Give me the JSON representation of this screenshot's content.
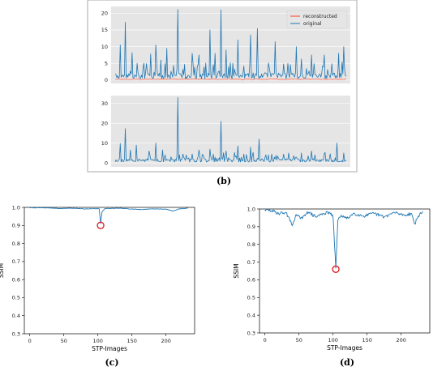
{
  "colors": {
    "original": "#1f77b4",
    "reconstructed": "#ff3b1f",
    "marker": "#e0161b",
    "panel_bg": "#e5e5e5",
    "frame": "#a9a9a9"
  },
  "captions": {
    "b": "(b)",
    "c": "(c)",
    "d": "(d)"
  },
  "chart_data": [
    {
      "id": "b_top",
      "type": "line",
      "ylim": [
        -1,
        22
      ],
      "yticks": [
        0,
        5,
        10,
        15,
        20
      ],
      "x": {
        "min": 0,
        "max": 273
      },
      "legend": {
        "placement": "top-right",
        "entries": [
          "reconstructed",
          "original"
        ]
      },
      "series": [
        {
          "name": "reconstructed",
          "color": "#ff3b1f",
          "base": 0.3,
          "points": []
        },
        {
          "name": "original",
          "color": "#1f77b4",
          "base": 1.6,
          "points": [
            [
              6,
              10.5
            ],
            [
              12,
              17.3
            ],
            [
              20,
              8.2
            ],
            [
              33,
              3.8
            ],
            [
              42,
              7.8
            ],
            [
              48,
              10.5
            ],
            [
              54,
              6.0
            ],
            [
              61,
              9.5
            ],
            [
              74,
              21.1
            ],
            [
              80,
              3.2
            ],
            [
              91,
              8.0
            ],
            [
              99,
              7.5
            ],
            [
              112,
              15.0
            ],
            [
              118,
              8.0
            ],
            [
              125,
              21.0
            ],
            [
              131,
              9.0
            ],
            [
              145,
              12.0
            ],
            [
              152,
              4.2
            ],
            [
              160,
              13.5
            ],
            [
              168,
              15.4
            ],
            [
              181,
              5.1
            ],
            [
              189,
              11.5
            ],
            [
              199,
              4.8
            ],
            [
              214,
              10.0
            ],
            [
              220,
              6.3
            ],
            [
              232,
              7.5
            ],
            [
              247,
              7.5
            ],
            [
              256,
              4.9
            ],
            [
              264,
              8.0
            ],
            [
              270,
              10.0
            ]
          ]
        }
      ]
    },
    {
      "id": "b_bottom",
      "type": "line",
      "ylim": [
        -2,
        34
      ],
      "yticks": [
        0,
        10,
        20,
        30
      ],
      "x": {
        "min": 0,
        "max": 273
      },
      "series": [
        {
          "name": "original",
          "color": "#1f77b4",
          "base": 1.6,
          "points": [
            [
              6,
              9.8
            ],
            [
              12,
              17.3
            ],
            [
              18,
              6.5
            ],
            [
              25,
              9.0
            ],
            [
              40,
              6.0
            ],
            [
              48,
              10.0
            ],
            [
              56,
              6.5
            ],
            [
              74,
              33.0
            ],
            [
              80,
              4.5
            ],
            [
              91,
              4.5
            ],
            [
              99,
              6.5
            ],
            [
              112,
              7.0
            ],
            [
              125,
              21.0
            ],
            [
              131,
              6.0
            ],
            [
              145,
              8.5
            ],
            [
              152,
              4.5
            ],
            [
              160,
              8.0
            ],
            [
              170,
              12.0
            ],
            [
              181,
              4.0
            ],
            [
              205,
              5.0
            ],
            [
              220,
              5.0
            ],
            [
              232,
              6.0
            ],
            [
              247,
              4.5
            ],
            [
              262,
              10.0
            ],
            [
              270,
              5.0
            ]
          ]
        }
      ]
    },
    {
      "id": "c",
      "type": "line",
      "xlabel": "STP-Images",
      "ylabel": "SSIM",
      "ylim": [
        0.3,
        1.0
      ],
      "xlim": [
        -8,
        242
      ],
      "xticks": [
        0,
        50,
        100,
        150,
        200
      ],
      "yticks": [
        0.3,
        0.4,
        0.5,
        0.6,
        0.7,
        0.8,
        0.9,
        1.0
      ],
      "series": [
        {
          "name": "",
          "color": "#1f77b4",
          "points": [
            [
              0,
              0.998
            ],
            [
              30,
              0.997
            ],
            [
              45,
              0.993
            ],
            [
              60,
              0.996
            ],
            [
              80,
              0.991
            ],
            [
              95,
              0.993
            ],
            [
              102,
              0.992
            ],
            [
              104,
              0.91
            ],
            [
              106,
              0.975
            ],
            [
              110,
              0.993
            ],
            [
              130,
              0.995
            ],
            [
              150,
              0.991
            ],
            [
              165,
              0.988
            ],
            [
              180,
              0.992
            ],
            [
              200,
              0.99
            ],
            [
              210,
              0.98
            ],
            [
              220,
              0.992
            ],
            [
              232,
              0.995
            ]
          ]
        }
      ],
      "highlight": {
        "x": 104,
        "y": 0.9
      }
    },
    {
      "id": "d",
      "type": "line",
      "xlabel": "STP-Images",
      "ylabel": "SSIM",
      "ylim": [
        0.3,
        1.0
      ],
      "xlim": [
        -8,
        242
      ],
      "xticks": [
        0,
        50,
        100,
        150,
        200
      ],
      "yticks": [
        0.3,
        0.4,
        0.5,
        0.6,
        0.7,
        0.8,
        0.9,
        1.0
      ],
      "series": [
        {
          "name": "",
          "color": "#1f77b4",
          "points": [
            [
              0,
              0.995
            ],
            [
              10,
              0.99
            ],
            [
              20,
              0.975
            ],
            [
              30,
              0.98
            ],
            [
              35,
              0.955
            ],
            [
              40,
              0.905
            ],
            [
              45,
              0.965
            ],
            [
              55,
              0.945
            ],
            [
              62,
              0.985
            ],
            [
              75,
              0.955
            ],
            [
              85,
              0.975
            ],
            [
              95,
              0.98
            ],
            [
              100,
              0.955
            ],
            [
              104,
              0.665
            ],
            [
              107,
              0.935
            ],
            [
              112,
              0.965
            ],
            [
              120,
              0.945
            ],
            [
              130,
              0.975
            ],
            [
              145,
              0.96
            ],
            [
              160,
              0.975
            ],
            [
              175,
              0.955
            ],
            [
              190,
              0.98
            ],
            [
              205,
              0.965
            ],
            [
              215,
              0.975
            ],
            [
              220,
              0.915
            ],
            [
              225,
              0.96
            ],
            [
              232,
              0.985
            ]
          ]
        }
      ],
      "highlight": {
        "x": 104,
        "y": 0.66
      }
    }
  ]
}
